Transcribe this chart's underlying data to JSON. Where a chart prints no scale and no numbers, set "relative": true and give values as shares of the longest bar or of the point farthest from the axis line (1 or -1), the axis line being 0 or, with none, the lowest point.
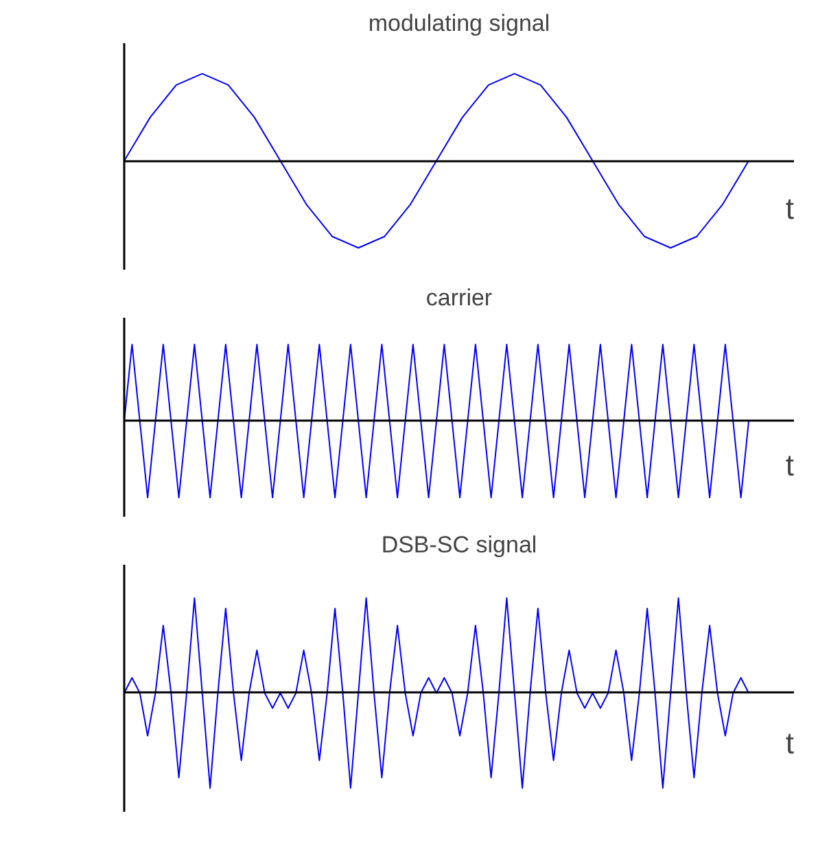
{
  "chart_data": [
    {
      "type": "line",
      "title": "modulating signal",
      "xlabel": "t",
      "relative": true,
      "color": "#0000ff",
      "categories": [
        null,
        null,
        null,
        null,
        null,
        null,
        null,
        null,
        null,
        null,
        null,
        null,
        null,
        null,
        null,
        null,
        null,
        null,
        null,
        null,
        null,
        null,
        null,
        null,
        null
      ],
      "values": [
        0,
        0.5,
        0.87,
        1,
        0.87,
        0.5,
        0,
        -0.5,
        -0.87,
        -1,
        -0.87,
        -0.5,
        0,
        0.5,
        0.87,
        1,
        0.87,
        0.5,
        0,
        -0.5,
        -0.87,
        -1,
        -0.87,
        -0.5,
        0
      ]
    },
    {
      "type": "line",
      "title": "carrier",
      "xlabel": "t",
      "relative": true,
      "color": "#0000ff",
      "categories": [
        null,
        null,
        null,
        null,
        null,
        null,
        null,
        null,
        null,
        null,
        null,
        null,
        null,
        null,
        null,
        null,
        null,
        null,
        null,
        null,
        null,
        null,
        null,
        null,
        null,
        null,
        null,
        null,
        null,
        null,
        null,
        null,
        null,
        null,
        null,
        null,
        null,
        null,
        null,
        null,
        null,
        null,
        null,
        null,
        null,
        null,
        null,
        null,
        null,
        null,
        null,
        null,
        null,
        null,
        null,
        null,
        null,
        null,
        null,
        null,
        null,
        null,
        null,
        null,
        null,
        null,
        null,
        null,
        null,
        null,
        null,
        null,
        null,
        null,
        null,
        null,
        null,
        null,
        null,
        null,
        null
      ],
      "values": [
        0,
        1,
        0,
        -1,
        0,
        1,
        0,
        -1,
        0,
        1,
        0,
        -1,
        0,
        1,
        0,
        -1,
        0,
        1,
        0,
        -1,
        0,
        1,
        0,
        -1,
        0,
        1,
        0,
        -1,
        0,
        1,
        0,
        -1,
        0,
        1,
        0,
        -1,
        0,
        1,
        0,
        -1,
        0,
        1,
        0,
        -1,
        0,
        1,
        0,
        -1,
        0,
        1,
        0,
        -1,
        0,
        1,
        0,
        -1,
        0,
        1,
        0,
        -1,
        0,
        1,
        0,
        -1,
        0,
        1,
        0,
        -1,
        0,
        1,
        0,
        -1,
        0,
        1,
        0,
        -1,
        0,
        1,
        0,
        -1,
        0
      ]
    },
    {
      "type": "line",
      "title": "DSB-SC signal",
      "xlabel": "t",
      "relative": true,
      "color": "#0000ff",
      "categories": [
        null,
        null,
        null,
        null,
        null,
        null,
        null,
        null,
        null,
        null,
        null,
        null,
        null,
        null,
        null,
        null,
        null,
        null,
        null,
        null,
        null,
        null,
        null,
        null,
        null,
        null,
        null,
        null,
        null,
        null,
        null,
        null,
        null,
        null,
        null,
        null,
        null,
        null,
        null,
        null,
        null,
        null,
        null,
        null,
        null,
        null,
        null,
        null,
        null,
        null,
        null,
        null,
        null,
        null,
        null,
        null,
        null,
        null,
        null,
        null,
        null,
        null,
        null,
        null,
        null,
        null,
        null,
        null,
        null,
        null,
        null,
        null,
        null,
        null,
        null,
        null,
        null,
        null,
        null,
        null,
        null
      ],
      "values": [
        0,
        0.16,
        0,
        -0.45,
        0,
        0.71,
        0,
        -0.89,
        0,
        1,
        0,
        -1,
        0,
        0.89,
        0,
        -0.71,
        0,
        0.45,
        0,
        -0.16,
        0,
        -0.16,
        0,
        0.45,
        0,
        -0.71,
        0,
        0.89,
        0,
        -1,
        0,
        1,
        0,
        -0.89,
        0,
        0.71,
        0,
        -0.45,
        0,
        0.16,
        0,
        0.16,
        0,
        -0.45,
        0,
        0.71,
        0,
        -0.89,
        0,
        1,
        0,
        -1,
        0,
        0.89,
        0,
        -0.71,
        0,
        0.45,
        0,
        -0.16,
        0,
        -0.16,
        0,
        0.45,
        0,
        -0.71,
        0,
        0.89,
        0,
        -1,
        0,
        1,
        0,
        -0.89,
        0,
        0.71,
        0,
        -0.45,
        0,
        0.16,
        0
      ]
    }
  ]
}
